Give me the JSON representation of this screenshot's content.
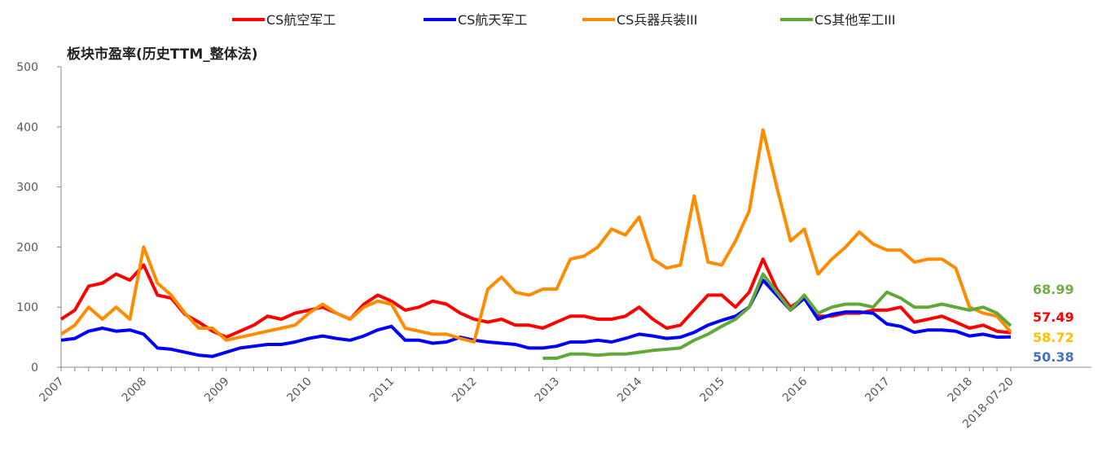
{
  "chart_data": {
    "type": "line",
    "title": "板块市盈率(历史TTM_整体法)",
    "categories": [
      "2007",
      null,
      null,
      null,
      null,
      null,
      "2008",
      null,
      null,
      null,
      null,
      null,
      "2009",
      null,
      null,
      null,
      null,
      null,
      "2010",
      null,
      null,
      null,
      null,
      null,
      "2011",
      null,
      null,
      null,
      null,
      null,
      "2012",
      null,
      null,
      null,
      null,
      null,
      "2013",
      null,
      null,
      null,
      null,
      null,
      "2014",
      null,
      null,
      null,
      null,
      null,
      "2015",
      null,
      null,
      null,
      null,
      null,
      "2016",
      null,
      null,
      null,
      null,
      null,
      "2017",
      null,
      null,
      null,
      null,
      null,
      "2018",
      null,
      null,
      "2018-07-20"
    ],
    "series": [
      {
        "name": "CS航空军工",
        "color": "#ff0000",
        "values": [
          80,
          95,
          135,
          140,
          155,
          145,
          170,
          120,
          115,
          88,
          75,
          60,
          50,
          60,
          70,
          85,
          80,
          90,
          95,
          100,
          90,
          80,
          105,
          120,
          110,
          95,
          100,
          110,
          105,
          90,
          80,
          75,
          80,
          70,
          70,
          65,
          75,
          85,
          85,
          80,
          80,
          85,
          100,
          80,
          65,
          70,
          95,
          120,
          120,
          100,
          125,
          180,
          130,
          100,
          115,
          85,
          85,
          90,
          90,
          95,
          95,
          100,
          75,
          80,
          85,
          75,
          65,
          70,
          60,
          57.49
        ]
      },
      {
        "name": "CS航天军工",
        "color": "#0000ff",
        "values": [
          45,
          48,
          60,
          65,
          60,
          62,
          55,
          32,
          30,
          25,
          20,
          18,
          25,
          32,
          35,
          38,
          38,
          42,
          48,
          52,
          48,
          45,
          52,
          62,
          68,
          45,
          45,
          40,
          42,
          50,
          45,
          42,
          40,
          38,
          32,
          32,
          35,
          42,
          42,
          45,
          42,
          48,
          55,
          52,
          48,
          50,
          58,
          70,
          78,
          85,
          100,
          145,
          120,
          95,
          115,
          80,
          88,
          92,
          92,
          90,
          72,
          68,
          58,
          62,
          62,
          60,
          52,
          55,
          50,
          50.38
        ]
      },
      {
        "name": "CS兵器兵装III",
        "color": "#ff8c00",
        "values": [
          55,
          70,
          100,
          80,
          100,
          80,
          200,
          140,
          120,
          90,
          65,
          65,
          45,
          50,
          55,
          60,
          65,
          70,
          90,
          105,
          90,
          80,
          100,
          110,
          105,
          65,
          60,
          55,
          55,
          48,
          42,
          130,
          150,
          125,
          120,
          130,
          130,
          180,
          185,
          200,
          230,
          220,
          250,
          180,
          165,
          170,
          285,
          175,
          170,
          210,
          260,
          395,
          300,
          210,
          230,
          155,
          180,
          200,
          225,
          205,
          195,
          195,
          175,
          180,
          180,
          165,
          100,
          90,
          85,
          58.72
        ]
      },
      {
        "name": "CS其他军工III",
        "color": "#5fa83a",
        "values": [
          null,
          null,
          null,
          null,
          null,
          null,
          null,
          null,
          null,
          null,
          null,
          null,
          null,
          null,
          null,
          null,
          null,
          null,
          null,
          null,
          null,
          null,
          null,
          null,
          null,
          null,
          null,
          null,
          null,
          null,
          null,
          null,
          null,
          null,
          null,
          15,
          15,
          22,
          22,
          20,
          22,
          22,
          25,
          28,
          30,
          32,
          45,
          55,
          68,
          80,
          100,
          155,
          125,
          95,
          120,
          90,
          100,
          105,
          105,
          100,
          125,
          115,
          100,
          100,
          105,
          100,
          95,
          100,
          90,
          68.99
        ]
      }
    ],
    "ylim": [
      0,
      500
    ],
    "yticks": [
      0,
      100,
      200,
      300,
      400,
      500
    ]
  }
}
